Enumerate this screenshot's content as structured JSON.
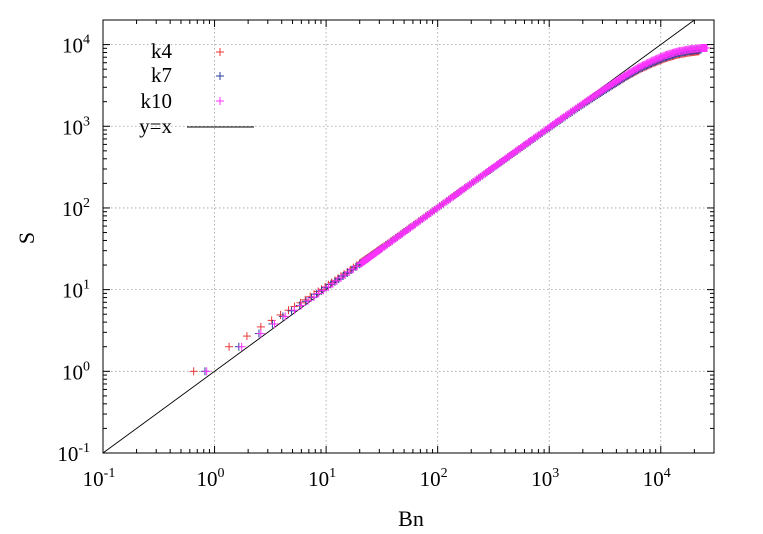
{
  "chart_data": {
    "type": "scatter",
    "xlabel": "Bn",
    "ylabel": "S",
    "xscale": "log",
    "yscale": "log",
    "xlim": [
      0.1,
      30000
    ],
    "ylim": [
      0.1,
      20000
    ],
    "grid": true,
    "legend_position": "top-left",
    "x_ticks": [
      {
        "base": "10",
        "exp": "-1",
        "value": 0.1
      },
      {
        "base": "10",
        "exp": "0",
        "value": 1
      },
      {
        "base": "10",
        "exp": "1",
        "value": 10
      },
      {
        "base": "10",
        "exp": "2",
        "value": 100
      },
      {
        "base": "10",
        "exp": "3",
        "value": 1000
      },
      {
        "base": "10",
        "exp": "4",
        "value": 10000
      }
    ],
    "y_ticks": [
      {
        "base": "10",
        "exp": "-1",
        "value": 0.1
      },
      {
        "base": "10",
        "exp": "0",
        "value": 1
      },
      {
        "base": "10",
        "exp": "1",
        "value": 10
      },
      {
        "base": "10",
        "exp": "2",
        "value": 100
      },
      {
        "base": "10",
        "exp": "3",
        "value": 1000
      },
      {
        "base": "10",
        "exp": "4",
        "value": 10000
      }
    ],
    "series": [
      {
        "name": "k4",
        "color": "#e8393a",
        "marker": "+",
        "x": [
          0.65,
          1.35,
          1.95,
          2.6,
          3.25,
          3.9,
          4.6,
          5.2,
          5.9,
          6.5,
          7.2,
          7.8,
          8.5,
          9.1,
          9.8,
          10.5,
          11.2,
          12,
          12.8,
          13.6,
          14.5,
          15.5,
          16.5,
          17.6,
          18.8,
          20,
          25,
          32,
          45,
          63,
          90,
          130,
          180,
          260,
          360,
          500,
          700,
          1000,
          1400,
          2000,
          2800,
          3800,
          5000,
          6500,
          8500,
          11000,
          14000,
          18000,
          22000
        ],
        "y": [
          1,
          2,
          2.7,
          3.5,
          4.2,
          4.9,
          5.6,
          6.2,
          6.9,
          7.5,
          8.2,
          8.8,
          9.5,
          10.1,
          10.8,
          11.5,
          12.2,
          13,
          13.8,
          14.6,
          15.5,
          16.5,
          17.5,
          18.6,
          19.8,
          21,
          26,
          33,
          46,
          64,
          91,
          131,
          180,
          258,
          355,
          490,
          680,
          960,
          1330,
          1850,
          2500,
          3250,
          4100,
          5000,
          5900,
          6800,
          7500,
          8000,
          8300
        ]
      },
      {
        "name": "k7",
        "color": "#2b3f9e",
        "marker": "+",
        "x": [
          0.82,
          1.65,
          2.5,
          3.3,
          4.1,
          4.9,
          5.8,
          6.6,
          7.4,
          8.2,
          9.1,
          10,
          11,
          12,
          13,
          14.2,
          15.5,
          17,
          18.5,
          20,
          25,
          32,
          45,
          63,
          90,
          130,
          180,
          260,
          360,
          500,
          700,
          1000,
          1400,
          2000,
          2800,
          3800,
          5000,
          6500,
          8500,
          11000,
          14000,
          18000,
          23000
        ],
        "y": [
          1,
          2,
          2.9,
          3.8,
          4.7,
          5.5,
          6.4,
          7.2,
          8,
          8.8,
          9.7,
          10.6,
          11.6,
          12.5,
          13.5,
          14.7,
          16,
          17.5,
          19,
          20.5,
          25.5,
          32.5,
          45.5,
          63.5,
          90.5,
          130,
          180,
          257,
          353,
          488,
          676,
          955,
          1320,
          1840,
          2490,
          3260,
          4150,
          5100,
          6050,
          7000,
          7800,
          8350,
          8700
        ]
      },
      {
        "name": "k10",
        "color": "#ff33ff",
        "marker": "+",
        "x": [
          0.85,
          1.75,
          2.6,
          3.45,
          4.3,
          5.2,
          6,
          6.9,
          7.8,
          8.6,
          9.5,
          10.5,
          11.5,
          12.5,
          13.6,
          14.8,
          16.1,
          17.5,
          19,
          20.6,
          25,
          32,
          45,
          63,
          90,
          130,
          180,
          260,
          360,
          500,
          700,
          1000,
          1400,
          2000,
          2800,
          3800,
          5000,
          6500,
          8500,
          11000,
          14000,
          18000,
          23000,
          26000
        ],
        "y": [
          1,
          2,
          2.9,
          3.8,
          4.7,
          5.6,
          6.4,
          7.3,
          8.1,
          9,
          9.8,
          10.8,
          11.8,
          12.8,
          13.9,
          15.1,
          16.4,
          17.8,
          19.3,
          20.9,
          25.3,
          32.3,
          45.3,
          63.3,
          90.3,
          130,
          180,
          258,
          356,
          492,
          685,
          970,
          1345,
          1890,
          2580,
          3400,
          4350,
          5350,
          6400,
          7400,
          8200,
          8750,
          9050,
          9100
        ]
      }
    ],
    "reference_line": {
      "name": "y=x",
      "color": "#000000"
    }
  }
}
